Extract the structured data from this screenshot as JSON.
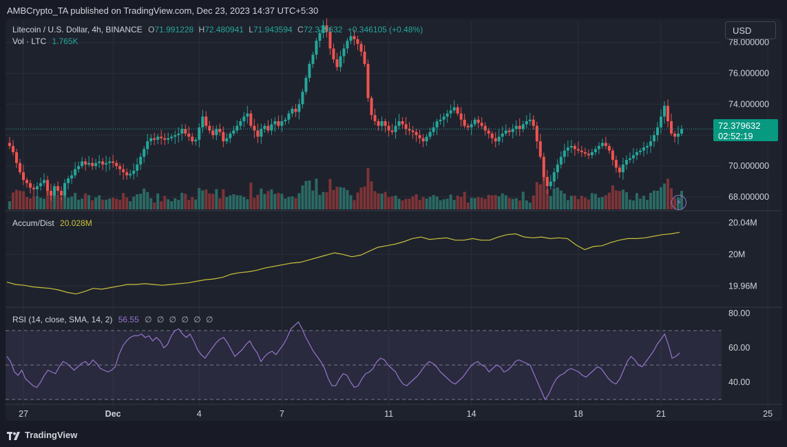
{
  "header": {
    "publisher": "AMBCrypto_TA published on TradingView.com, Dec 23, 2023 14:37 UTC+5:30"
  },
  "toolbar": {
    "currency_button": "USD"
  },
  "legend": {
    "symbol": "Litecoin / U.S. Dollar, 4h, BINANCE",
    "open_label": "O",
    "open_value": "71.991228",
    "high_label": "H",
    "high_value": "72.480941",
    "low_label": "L",
    "low_value": "71.943594",
    "close_label": "C",
    "close_value": "72.379632",
    "change": "+0.346105 (+0.48%)",
    "vol_label": "Vol · LTC",
    "vol_value": "1.765K"
  },
  "price_tag": {
    "price": "72.379632",
    "countdown": "02:52:19"
  },
  "indicators": {
    "accum_label": "Accum/Dist",
    "accum_value": "20.028M",
    "rsi_label": "RSI (14, close, SMA, 14, 2)",
    "rsi_value": "56.55",
    "rsi_extra": "∅ ∅ ∅ ∅ ∅ ∅"
  },
  "footer": {
    "brand": "TradingView"
  },
  "colors": {
    "up": "#26a69a",
    "down": "#ef5350",
    "vol_up": "#2b6a64",
    "vol_down": "#7d3437",
    "accum_line": "#c9c23a",
    "rsi_line": "#9575cd",
    "background": "#1e222d"
  },
  "icons": [
    "lightning-icon",
    "tradingview-logo-icon"
  ],
  "chart_data": [
    {
      "type": "candlestick",
      "title": "Litecoin / U.S. Dollar, 4h, BINANCE",
      "x_tick_labels": [
        "27",
        "Dec",
        "4",
        "7",
        "11",
        "14",
        "18",
        "21",
        "25"
      ],
      "x_tick_index": [
        4,
        30,
        55,
        79,
        110,
        134,
        165,
        189,
        220
      ],
      "y_ticks": [
        "68.000000",
        "70.000000",
        "72.000000",
        "74.000000",
        "76.000000",
        "78.000000"
      ],
      "y_tick_values": [
        68,
        70,
        72,
        74,
        76,
        78
      ],
      "ylim": [
        67.2,
        79.4
      ],
      "close_series": [
        71.3,
        70.9,
        70.2,
        69.6,
        69.1,
        68.9,
        68.6,
        68.5,
        68.7,
        68.9,
        69.1,
        68.4,
        68.1,
        68.7,
        68.4,
        68.1,
        68.9,
        69.2,
        69.4,
        69.8,
        70.0,
        70.3,
        70.1,
        70.2,
        70.0,
        70.2,
        70.3,
        70.1,
        70.2,
        70.3,
        70.2,
        70.0,
        69.8,
        69.6,
        69.4,
        69.5,
        69.7,
        70.1,
        70.6,
        71.1,
        71.6,
        71.8,
        71.7,
        71.9,
        71.8,
        71.7,
        71.8,
        71.9,
        72.0,
        72.1,
        72.4,
        72.1,
        71.9,
        71.6,
        71.7,
        72.5,
        73.2,
        72.6,
        72.3,
        72.0,
        72.4,
        72.2,
        71.6,
        71.8,
        72.1,
        72.3,
        72.6,
        72.9,
        73.2,
        73.4,
        72.6,
        72.3,
        71.9,
        72.4,
        72.6,
        72.3,
        72.7,
        72.9,
        72.6,
        72.9,
        73.0,
        73.4,
        73.7,
        73.5,
        74.0,
        74.8,
        75.7,
        76.6,
        77.2,
        78.1,
        78.6,
        79.1,
        78.7,
        77.6,
        76.9,
        76.4,
        77.1,
        77.6,
        78.1,
        78.4,
        78.2,
        77.9,
        77.4,
        76.6,
        74.4,
        73.3,
        72.9,
        72.6,
        72.9,
        72.6,
        72.3,
        72.2,
        72.6,
        72.9,
        72.7,
        72.4,
        72.3,
        72.2,
        72.0,
        71.8,
        71.6,
        71.9,
        72.2,
        72.5,
        72.9,
        73.0,
        73.2,
        73.4,
        73.6,
        73.8,
        73.4,
        73.0,
        72.6,
        72.5,
        72.7,
        73.0,
        72.8,
        72.6,
        72.3,
        72.1,
        71.8,
        71.6,
        71.9,
        72.1,
        72.3,
        72.2,
        72.4,
        72.6,
        72.4,
        72.7,
        72.9,
        73.0,
        72.6,
        71.6,
        70.6,
        69.3,
        68.7,
        69.0,
        69.6,
        70.1,
        70.6,
        71.0,
        71.2,
        71.3,
        71.1,
        71.0,
        70.9,
        70.8,
        70.7,
        70.9,
        71.1,
        71.3,
        71.5,
        71.3,
        71.0,
        70.4,
        69.9,
        69.6,
        70.1,
        70.4,
        70.5,
        70.7,
        70.9,
        71.0,
        71.2,
        71.3,
        71.6,
        72.0,
        72.5,
        73.2,
        73.9,
        72.9,
        72.1,
        71.9,
        72.1,
        72.4
      ],
      "last_price": "72.379632"
    },
    {
      "type": "area",
      "name": "Volume",
      "note": "volume bars sized relative to peak; values not printed"
    },
    {
      "type": "line",
      "name": "Accum/Dist",
      "y_ticks": [
        "19.96M",
        "20M",
        "20.04M"
      ],
      "y_tick_values": [
        19.96,
        20.0,
        20.04
      ],
      "ylim": [
        19.935,
        20.05
      ],
      "values": [
        19.965,
        19.962,
        19.961,
        19.959,
        19.958,
        19.957,
        19.955,
        19.952,
        19.95,
        19.953,
        19.957,
        19.956,
        19.958,
        19.96,
        19.962,
        19.962,
        19.963,
        19.962,
        19.961,
        19.962,
        19.963,
        19.964,
        19.966,
        19.968,
        19.969,
        19.971,
        19.975,
        19.977,
        19.978,
        19.98,
        19.983,
        19.985,
        19.987,
        19.989,
        19.99,
        19.993,
        19.996,
        19.999,
        20.002,
        20.0,
        19.997,
        19.999,
        20.004,
        20.009,
        20.011,
        20.013,
        20.016,
        20.02,
        20.022,
        20.019,
        20.02,
        20.021,
        20.018,
        20.018,
        20.02,
        20.018,
        20.018,
        20.022,
        20.025,
        20.026,
        20.022,
        20.021,
        20.022,
        20.02,
        20.021,
        20.02,
        20.012,
        20.006,
        20.01,
        20.011,
        20.015,
        20.018,
        20.02,
        20.02,
        20.021,
        20.023,
        20.025,
        20.026,
        20.028
      ],
      "value_label": "20.028M"
    },
    {
      "type": "line",
      "name": "RSI",
      "y_ticks": [
        "40.00",
        "60.00",
        "80.00"
      ],
      "y_tick_values": [
        40,
        60,
        80
      ],
      "ylim": [
        28,
        82
      ],
      "bands": [
        30,
        50,
        70
      ],
      "values": [
        55,
        52,
        46,
        44,
        47,
        42,
        40,
        38,
        37,
        40,
        44,
        47,
        46,
        45,
        49,
        52,
        51,
        49,
        47,
        49,
        51,
        52,
        50,
        53,
        51,
        48,
        47,
        46,
        47,
        49,
        56,
        61,
        64,
        66,
        67,
        67,
        68,
        66,
        67,
        64,
        66,
        64,
        60,
        62,
        67,
        70,
        71,
        68,
        66,
        68,
        64,
        59,
        56,
        54,
        57,
        60,
        63,
        65,
        66,
        63,
        59,
        55,
        57,
        59,
        62,
        64,
        60,
        57,
        52,
        55,
        57,
        58,
        56,
        59,
        62,
        66,
        71,
        73,
        75,
        71,
        66,
        62,
        58,
        55,
        52,
        48,
        42,
        38,
        38,
        42,
        45,
        44,
        40,
        37,
        38,
        42,
        45,
        46,
        48,
        52,
        54,
        53,
        50,
        48,
        46,
        42,
        39,
        38,
        40,
        42,
        44,
        47,
        50,
        52,
        51,
        49,
        46,
        44,
        42,
        40,
        39,
        41,
        43,
        46,
        49,
        51,
        52,
        50,
        49,
        46,
        48,
        50,
        49,
        46,
        47,
        49,
        52,
        53,
        52,
        51,
        50,
        45,
        40,
        35,
        30,
        33,
        38,
        42,
        44,
        45,
        47,
        48,
        47,
        46,
        44,
        43,
        45,
        47,
        49,
        48,
        45,
        42,
        40,
        39,
        42,
        47,
        52,
        55,
        53,
        50,
        49,
        52,
        55,
        58,
        62,
        65,
        68,
        62,
        54,
        55,
        57
      ],
      "value_label": "56.55"
    }
  ]
}
